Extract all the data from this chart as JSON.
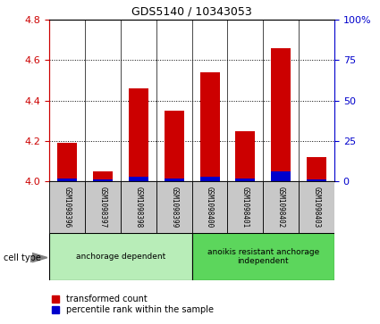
{
  "title": "GDS5140 / 10343053",
  "samples": [
    "GSM1098396",
    "GSM1098397",
    "GSM1098398",
    "GSM1098399",
    "GSM1098400",
    "GSM1098401",
    "GSM1098402",
    "GSM1098403"
  ],
  "transformed_counts": [
    4.19,
    4.05,
    4.46,
    4.35,
    4.54,
    4.25,
    4.66,
    4.12
  ],
  "percentile_ranks": [
    2,
    1,
    3,
    2,
    3,
    2,
    6,
    1
  ],
  "ylim_left": [
    4.0,
    4.8
  ],
  "ylim_right": [
    0,
    100
  ],
  "yticks_left": [
    4.0,
    4.2,
    4.4,
    4.6,
    4.8
  ],
  "yticks_right": [
    0,
    25,
    50,
    75,
    100
  ],
  "ytick_labels_right": [
    "0",
    "25",
    "50",
    "75",
    "100%"
  ],
  "groups": [
    {
      "label": "anchorage dependent",
      "indices": [
        0,
        1,
        2,
        3
      ],
      "color": "#b8edb8"
    },
    {
      "label": "anoikis resistant anchorage\nindependent",
      "indices": [
        4,
        5,
        6,
        7
      ],
      "color": "#5cd65c"
    }
  ],
  "bar_color_red": "#cc0000",
  "bar_color_blue": "#0000cc",
  "bar_width": 0.55,
  "legend_red": "transformed count",
  "legend_blue": "percentile rank within the sample",
  "cell_type_label": "cell type",
  "left_tick_color": "#cc0000",
  "right_tick_color": "#0000cc",
  "bg_color_sample_row": "#c8c8c8",
  "title_fontsize": 9
}
